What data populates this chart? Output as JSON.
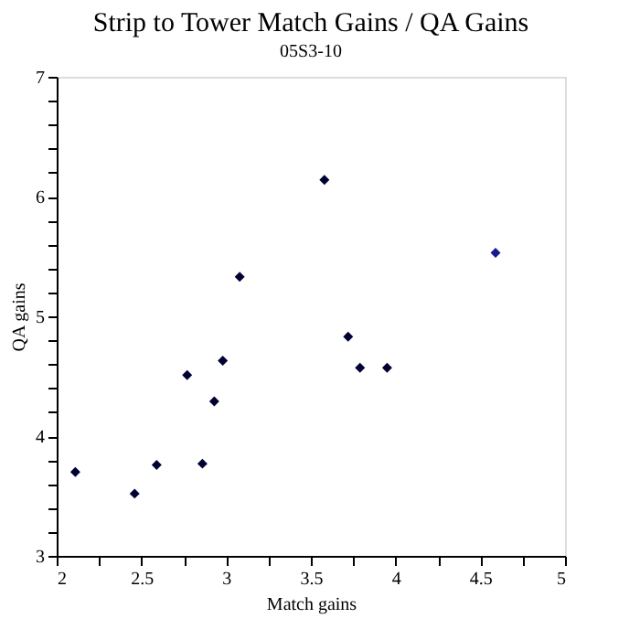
{
  "chart_data": {
    "type": "scatter",
    "title": "Strip to Tower Match Gains / QA Gains",
    "subtitle": "05S3-10",
    "xlabel": "Match gains",
    "ylabel": "QA gains",
    "x": [
      2.11,
      2.46,
      2.59,
      2.77,
      2.86,
      2.93,
      2.98,
      3.08,
      3.58,
      3.72,
      3.79,
      3.95,
      4.59
    ],
    "values": [
      3.7,
      3.52,
      3.76,
      4.51,
      3.77,
      4.29,
      4.63,
      5.33,
      6.14,
      4.83,
      4.57,
      4.57,
      5.53
    ],
    "colors": [
      "#000033",
      "#000033",
      "#000033",
      "#000033",
      "#000033",
      "#000033",
      "#000033",
      "#000033",
      "#000033",
      "#000033",
      "#000033",
      "#000033",
      "#1a1a8c"
    ],
    "marker": "diamond",
    "grid": false,
    "legend": false,
    "xlim": [
      2,
      5
    ],
    "ylim": [
      3,
      7
    ],
    "xticks": [
      2,
      {
        "value": 2.25,
        "label": null
      },
      2.5,
      {
        "value": 2.75,
        "label": null
      },
      3,
      {
        "value": 3.25,
        "label": null
      },
      3.5,
      {
        "value": 3.75,
        "label": null
      },
      4,
      {
        "value": 4.25,
        "label": null
      },
      4.5,
      {
        "value": 4.75,
        "label": null
      },
      5
    ],
    "yticks": [
      3,
      {
        "value": 3.2,
        "label": null
      },
      {
        "value": 3.4,
        "label": null
      },
      {
        "value": 3.6,
        "label": null
      },
      {
        "value": 3.8,
        "label": null
      },
      4,
      {
        "value": 4.2,
        "label": null
      },
      {
        "value": 4.4,
        "label": null
      },
      {
        "value": 4.6,
        "label": null
      },
      {
        "value": 4.8,
        "label": null
      },
      5,
      {
        "value": 5.2,
        "label": null
      },
      {
        "value": 5.4,
        "label": null
      },
      {
        "value": 5.6,
        "label": null
      },
      {
        "value": 5.8,
        "label": null
      },
      6,
      {
        "value": 6.2,
        "label": null
      },
      {
        "value": 6.4,
        "label": null
      },
      {
        "value": 6.6,
        "label": null
      },
      {
        "value": 6.8,
        "label": null
      },
      7
    ]
  }
}
